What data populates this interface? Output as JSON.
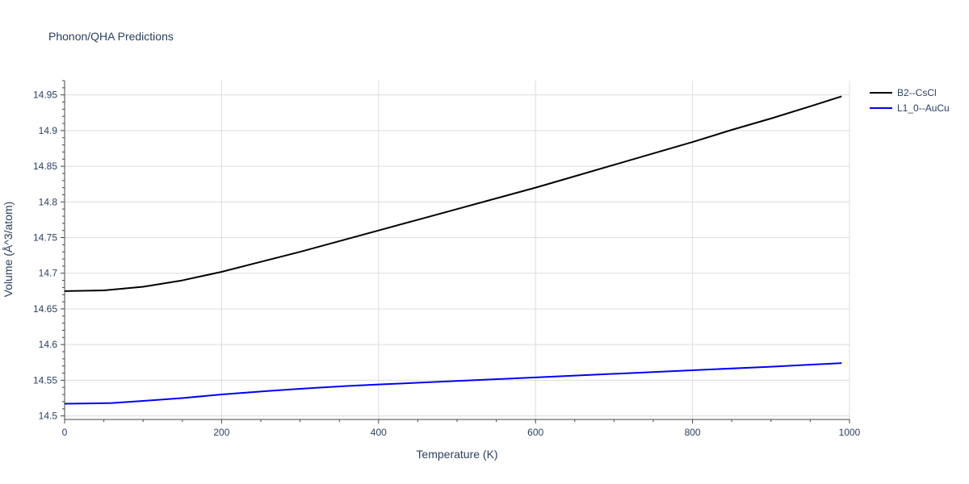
{
  "chart_data": {
    "type": "line",
    "title": "Phonon/QHA Predictions",
    "xlabel": "Temperature (K)",
    "ylabel": "Volume (Å^3/atom)",
    "xlim": [
      0,
      1000
    ],
    "ylim": [
      14.495,
      14.97
    ],
    "x_ticks": [
      0,
      200,
      400,
      600,
      800,
      1000
    ],
    "y_ticks": [
      14.5,
      14.55,
      14.6,
      14.65,
      14.7,
      14.75,
      14.8,
      14.85,
      14.9,
      14.95
    ],
    "grid": true,
    "legend_position": "top-right",
    "series": [
      {
        "name": "B2--CsCl",
        "color": "#000000",
        "x": [
          0,
          50,
          100,
          150,
          200,
          250,
          300,
          350,
          400,
          450,
          500,
          550,
          600,
          650,
          700,
          750,
          800,
          850,
          900,
          950,
          990
        ],
        "y": [
          14.675,
          14.676,
          14.681,
          14.69,
          14.702,
          14.716,
          14.73,
          14.745,
          14.76,
          14.775,
          14.79,
          14.805,
          14.82,
          14.836,
          14.852,
          14.868,
          14.884,
          14.901,
          14.917,
          14.934,
          14.948
        ]
      },
      {
        "name": "L1_0--AuCu",
        "color": "#0000ff",
        "x": [
          0,
          60,
          100,
          150,
          200,
          260,
          300,
          360,
          400,
          500,
          600,
          700,
          800,
          900,
          990
        ],
        "y": [
          14.517,
          14.518,
          14.521,
          14.525,
          14.53,
          14.535,
          14.538,
          14.542,
          14.544,
          14.549,
          14.554,
          14.559,
          14.564,
          14.569,
          14.574
        ]
      }
    ]
  }
}
